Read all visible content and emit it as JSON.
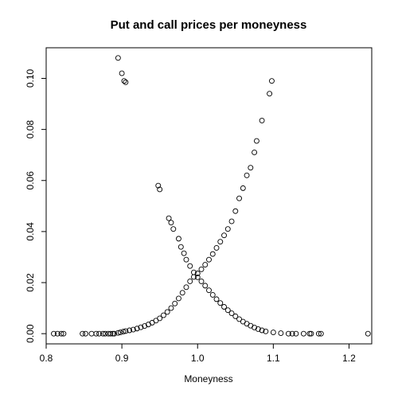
{
  "chart_data": {
    "type": "scatter",
    "title": "Put and call prices per moneyness",
    "xlabel": "Moneyness",
    "ylabel": "",
    "xlim": [
      0.8,
      1.23
    ],
    "ylim": [
      -0.004,
      0.112
    ],
    "x_ticks": [
      "0.8",
      "0.9",
      "1.0",
      "1.1",
      "1.2"
    ],
    "y_ticks": [
      "0.00",
      "0.02",
      "0.04",
      "0.06",
      "0.08",
      "0.10"
    ],
    "x_tick_values": [
      0.8,
      0.9,
      1.0,
      1.1,
      1.2
    ],
    "y_tick_values": [
      0.0,
      0.02,
      0.04,
      0.06,
      0.08,
      0.1
    ],
    "grid": false,
    "legend": "none",
    "series": [
      {
        "values_x": [
          0.81,
          0.815,
          0.82,
          0.823,
          0.848,
          0.852,
          0.86,
          0.866,
          0.87,
          0.875,
          0.878,
          0.882,
          0.885,
          0.888,
          0.89,
          0.895,
          0.898,
          0.902,
          0.905,
          0.91,
          0.915,
          0.92,
          0.925,
          0.93,
          0.935,
          0.94,
          0.945,
          0.95,
          0.955,
          0.96,
          0.965,
          0.97,
          0.975,
          0.98,
          0.985,
          0.99,
          0.995,
          1.0,
          1.005,
          1.01,
          1.015,
          1.02,
          1.025,
          1.03,
          1.035,
          1.04,
          1.045,
          1.05,
          1.055,
          1.06,
          1.065,
          1.07,
          1.075,
          1.078,
          1.085,
          1.095,
          1.098
        ],
        "values_y": [
          0.0,
          0.0,
          0.0,
          0.0,
          0.0,
          0.0,
          0.0,
          0.0,
          0.0,
          0.0,
          0.0,
          0.0,
          0.0,
          0.0,
          0.0,
          0.0003,
          0.0005,
          0.0008,
          0.001,
          0.0013,
          0.0016,
          0.002,
          0.0025,
          0.003,
          0.0036,
          0.0043,
          0.0051,
          0.006,
          0.0072,
          0.0085,
          0.01,
          0.0118,
          0.0138,
          0.016,
          0.0182,
          0.0205,
          0.0222,
          0.0236,
          0.0252,
          0.027,
          0.029,
          0.0312,
          0.0336,
          0.036,
          0.0385,
          0.041,
          0.044,
          0.048,
          0.053,
          0.057,
          0.062,
          0.065,
          0.071,
          0.0755,
          0.0835,
          0.094,
          0.099
        ]
      },
      {
        "values_x": [
          0.895,
          0.9,
          0.903,
          0.905,
          0.948,
          0.95,
          0.962,
          0.965,
          0.968,
          0.975,
          0.978,
          0.982,
          0.985,
          0.99,
          0.995,
          1.0,
          1.005,
          1.01,
          1.015,
          1.02,
          1.025,
          1.03,
          1.035,
          1.04,
          1.045,
          1.05,
          1.055,
          1.06,
          1.065,
          1.07,
          1.075,
          1.08,
          1.085,
          1.09,
          1.1,
          1.11,
          1.12,
          1.125,
          1.13,
          1.14,
          1.148,
          1.15,
          1.16,
          1.163,
          1.225
        ],
        "values_y": [
          0.108,
          0.102,
          0.099,
          0.0985,
          0.058,
          0.0565,
          0.0452,
          0.0435,
          0.041,
          0.0372,
          0.034,
          0.0315,
          0.029,
          0.0265,
          0.024,
          0.0221,
          0.0205,
          0.0188,
          0.017,
          0.0152,
          0.0135,
          0.012,
          0.0105,
          0.0092,
          0.008,
          0.0068,
          0.0057,
          0.0047,
          0.0039,
          0.0031,
          0.0024,
          0.0018,
          0.0013,
          0.0009,
          0.0005,
          0.0002,
          0.0,
          0.0,
          0.0,
          0.0,
          0.0,
          0.0,
          0.0,
          0.0,
          0.0
        ]
      }
    ]
  }
}
